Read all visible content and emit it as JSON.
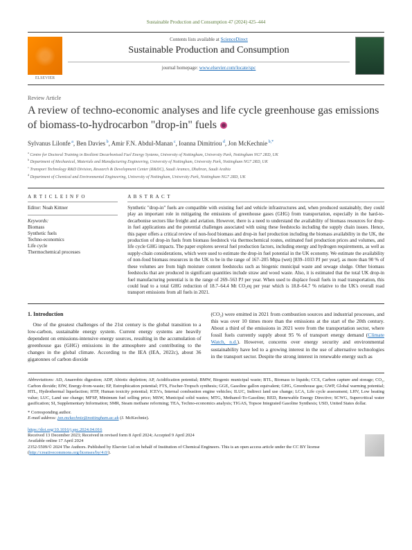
{
  "citation": "Sustainable Production and Consumption 47 (2024) 425–444",
  "header": {
    "contents_prefix": "Contents lists available at ",
    "contents_link": "ScienceDirect",
    "journal_title": "Sustainable Production and Consumption",
    "homepage_prefix": "journal homepage: ",
    "homepage_link": "www.elsevier.com/locate/spc",
    "publisher": "ELSEVIER"
  },
  "article": {
    "type": "Review Article",
    "title": "A review of techno-economic analyses and life cycle greenhouse gas emissions of biomass-to-hydrocarbon \"drop-in\" fuels",
    "authors_html": "Sylvanus Lilonfe<sup> a</sup>, Ben Davies<sup> b</sup>, Amir F.N. Abdul-Manan<sup> c</sup>, Ioanna Dimitriou<sup> d</sup>, Jon McKechnie<sup> b,*</sup>",
    "affiliations": [
      "a Centre for Doctoral Training in Resilient Decarbonised Fuel Energy Systems, University of Nottingham, University Park, Nottingham NG7 2RD, UK",
      "b Department of Mechanical, Materials and Manufacturing Engineering, University of Nottingham, University Park, Nottingham NG7 2RD, UK",
      "c Transport Technology R&D Division, Research & Development Center (R&DC), Saudi Aramco, Dhahran, Saudi Arabia",
      "d Department of Chemical and Environmental Engineering, University of Nottingham, University Park, Nottingham NG7 2RD, UK"
    ]
  },
  "info": {
    "heading": "A R T I C L E  I N F O",
    "editor_label": "Editor:",
    "editor": "Noah Kittner",
    "keywords_label": "Keywords:",
    "keywords": [
      "Biomass",
      "Synthetic fuels",
      "Techno-economics",
      "Life cycle",
      "Thermochemical processes"
    ]
  },
  "abstract": {
    "heading": "A B S T R A C T",
    "text": "Synthetic \"drop-in\" fuels are compatible with existing fuel and vehicle infrastructures and, when produced sustainably, they could play an important role in mitigating the emissions of greenhouse gases (GHG) from transportation, especially in the hard-to-decarbonise sectors like freight and aviation. However, there is a need to understand the availability of biomass resources for drop-in fuel applications and the potential challenges associated with using these feedstocks including the supply chain issues. Hence, this paper offers a critical review of non-food biomass and drop-in fuel production including the biomass availability in the UK, the production of drop-in fuels from biomass feedstock via thermochemical routes, estimated fuel production prices and volumes, and life cycle GHG impacts. The paper explores several fuel production factors, including energy and hydrogen requirements, as well as supply-chain considerations, which were used to estimate the drop-in fuel potential in the UK economy. We estimate the availability of non-food biomass resources in the UK to be in the range of 167–205 Mtpa (wet) [839–1033 PJ per year], as more than 90 % of these volumes are from high moisture content feedstocks such as biogenic municipal waste and sewage sludge. Other biomass feedstocks that are produced in significant quantities include straw and wood waste. Also, it is estimated that the total UK drop-in fuel manufacturing potential is in the range of 269–563 PJ per year. When used to displace fossil fuels in road transportation, this could lead to a total GHG reduction of 18.7–64.4 Mt CO₂eq per year which is 18.8–64.7 % relative to the UK's overall road transport emissions from all fuels in 2021."
  },
  "body": {
    "section_number": "1.",
    "section_title": "Introduction",
    "col1": "One of the greatest challenges of the 21st century is the global transition to a low-carbon, sustainable energy system. Current energy systems are heavily dependent on emissions-intensive energy sources, resulting in the accumulation of greenhouse gas (GHG) emissions in the atmosphere and contributing to the changes in the global climate. According to the IEA (IEA, 2022c), about 36 gigatonnes of carbon dioxide",
    "col2_part1": "(CO₂) were emitted in 2021 from combustion sources and industrial processes, and this was over 10 times more than the emissions at the start of the 20th century. About a third of the emissions in 2021 were from the transportation sector, where fossil fuels currently supply about 95 % of transport energy demand (",
    "col2_link": "Climate Watch, n.d.",
    "col2_part2": "). However, concerns over energy security and environmental sustainability have led to a growing interest in the use of alternative technologies in the transport sector. Despite the strong interest in renewable energy such as"
  },
  "footer": {
    "abbrev_label": "Abbreviations:",
    "abbrev_text": " AD, Anaerobic digestion; ADP, Abiotic depletion; AP, Acidification potential; BMW, Biogenic municipal waste; BTL, Biomass to liquids; CCS, Carbon capture and storage; CO₂, Carbon dioxide; EfW, Energy-from-waste; EP, Eutrophication potential; FTS, Fischer-Tropsch synthesis; GGE, Gasoline gallon equivalent; GHG, Greenhouse gas; GWP, Global warming potential; HTL, Hydrothermal liquefaction; HTP, Human toxicity potential; ICEVs, Internal combustion engine vehicles; ILUC, Indirect land use change; LCA, Life cycle assessment; LHV, Low heating value; LUC, Land use change; MFSP, Minimum fuel selling price; MSW, Municipal solid wastes; MTG, Methanol-To-Gasoline; RED, Renewable Energy Directive; SCWG, Supercritical water gasification; SI, Supplementary Information; SMR, Steam methane reforming; TEA, Techno-economics analysis; TIGAS, Topsoe Integrated Gasoline Synthesis; USD, United States dollar.",
    "corr": "* Corresponding author.",
    "email_label": "E-mail address:",
    "email": "jon.mckechnie@nottingham.ac.uk",
    "email_name": " (J. McKechnie).",
    "doi": "https://doi.org/10.1016/j.spc.2024.04.016",
    "received": "Received 13 December 2023; Received in revised form 8 April 2024; Accepted 9 April 2024",
    "available": "Available online 17 April 2024",
    "copyright": "2352-5509/© 2024 The Authors. Published by Elsevier Ltd on behalf of Institution of Chemical Engineers. This is an open access article under the CC BY license (",
    "license_link": "http://creativecommons.org/licenses/by/4.0/",
    "copyright_end": ")."
  },
  "colors": {
    "link": "#1a6bb8",
    "citation": "#5a7a3a",
    "text": "#222222",
    "border": "#333333"
  }
}
